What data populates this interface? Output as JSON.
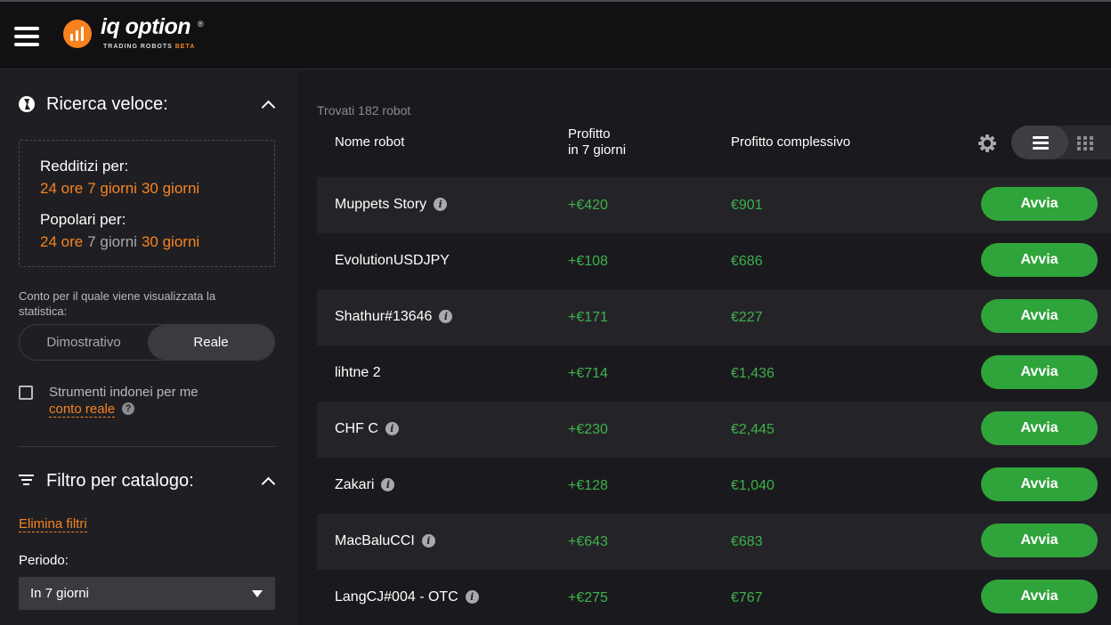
{
  "header": {
    "logo_text": "iq option",
    "logo_reg": "®",
    "logo_sub": "TRADING ROBOTS",
    "logo_beta": "BETA"
  },
  "sidebar": {
    "quick_search": {
      "title": "Ricerca veloce:",
      "profitable_label": "Redditizi per:",
      "popular_label": "Popolari per:",
      "profitable_options": [
        "24 ore",
        "7 giorni",
        "30 giorni"
      ],
      "popular_options": [
        "24 ore",
        "7 giorni",
        "30 giorni"
      ],
      "profitable_selected": "",
      "popular_selected": "7 giorni"
    },
    "account_label": "Conto per il quale viene visualizzata la statistica:",
    "account_toggle": {
      "left": "Dimostrativo",
      "right": "Reale",
      "selected": "Reale"
    },
    "checkbox": {
      "label": "Strumenti indonei per me",
      "link": "conto reale",
      "checked": false,
      "help": "?"
    },
    "catalog_filter": {
      "title": "Filtro per catalogo:",
      "clear": "Elimina filtri",
      "period_label": "Periodo:",
      "period_value": "In 7 giorni"
    }
  },
  "main": {
    "found_text": "Trovati 182 robot",
    "columns": {
      "name": "Nome robot",
      "profit7_line1": "Profitto",
      "profit7_line2": "in 7 giorni",
      "profit_total": "Profitto complessivo"
    },
    "start_label": "Avvia",
    "rows": [
      {
        "name": "Muppets Story",
        "info": true,
        "profit7": "+€420",
        "total": "€901"
      },
      {
        "name": "EvolutionUSDJPY",
        "info": false,
        "profit7": "+€108",
        "total": "€686"
      },
      {
        "name": "Shathur#13646",
        "info": true,
        "profit7": "+€171",
        "total": "€227"
      },
      {
        "name": "lihtne 2",
        "info": false,
        "profit7": "+€714",
        "total": "€1,436"
      },
      {
        "name": "CHF C",
        "info": true,
        "profit7": "+€230",
        "total": "€2,445"
      },
      {
        "name": "Zakari",
        "info": true,
        "profit7": "+€128",
        "total": "€1,040"
      },
      {
        "name": "MacBaluCCI",
        "info": true,
        "profit7": "+€643",
        "total": "€683"
      },
      {
        "name": "LangCJ#004 - OTC",
        "info": true,
        "profit7": "+€275",
        "total": "€767"
      }
    ]
  },
  "colors": {
    "accent": "#f7831f",
    "positive": "#3fb04a",
    "button": "#2fa43a"
  }
}
